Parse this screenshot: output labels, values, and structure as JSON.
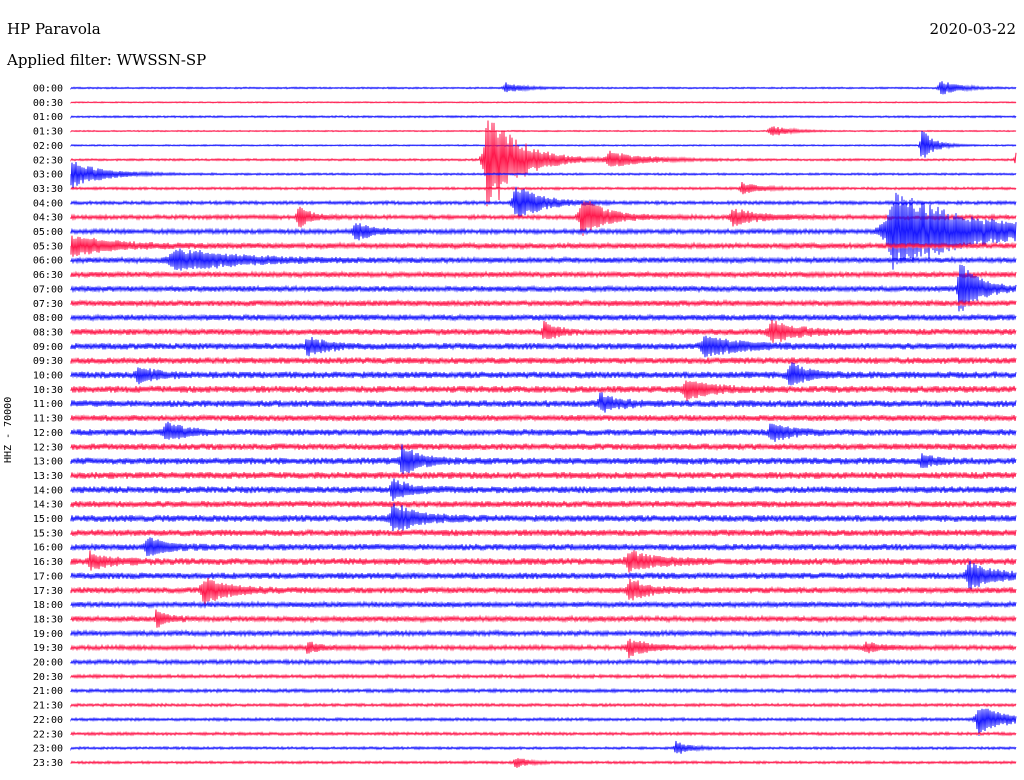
{
  "header": {
    "station": "HP Paravola",
    "date": "2020-03-22",
    "filter": "Applied filter: WWSSN-SP",
    "channel": "HHZ - 70000"
  },
  "colors": {
    "odd": "#1a1aff",
    "even": "#ff1a4d"
  },
  "chart_data": {
    "type": "line",
    "title": "HP Paravola",
    "ylabel": "HHZ - 70000",
    "grid": false,
    "rows": [
      "00:00",
      "00:30",
      "01:00",
      "01:30",
      "02:00",
      "02:30",
      "03:00",
      "03:30",
      "04:00",
      "04:30",
      "05:00",
      "05:30",
      "06:00",
      "06:30",
      "07:00",
      "07:30",
      "08:00",
      "08:30",
      "09:00",
      "09:30",
      "10:00",
      "10:30",
      "11:00",
      "11:30",
      "12:00",
      "12:30",
      "13:00",
      "13:30",
      "14:00",
      "14:30",
      "15:00",
      "15:30",
      "16:00",
      "16:30",
      "17:00",
      "17:30",
      "18:00",
      "18:30",
      "19:00",
      "19:30",
      "20:00",
      "20:30",
      "21:00",
      "21:30",
      "22:00",
      "22:30",
      "23:00",
      "23:30"
    ],
    "row_color_pattern": [
      "blue",
      "red"
    ],
    "noise_level": [
      0.8,
      0.6,
      0.9,
      0.6,
      0.7,
      1.0,
      1.0,
      1.2,
      1.6,
      2.0,
      2.2,
      2.6,
      2.6,
      2.6,
      2.8,
      2.8,
      3.0,
      3.0,
      3.2,
      3.2,
      3.4,
      3.4,
      3.4,
      3.0,
      3.2,
      3.2,
      3.4,
      3.4,
      3.4,
      3.2,
      3.4,
      3.2,
      3.2,
      3.4,
      3.2,
      3.0,
      2.6,
      2.6,
      2.4,
      2.2,
      2.0,
      1.6,
      1.6,
      1.4,
      1.4,
      1.4,
      1.2,
      1.2
    ],
    "events": [
      {
        "row": "00:00",
        "pos": 0.46,
        "amp": 5,
        "dur": 0.03
      },
      {
        "row": "00:00",
        "pos": 0.92,
        "amp": 8,
        "dur": 0.03
      },
      {
        "row": "01:30",
        "pos": 0.74,
        "amp": 6,
        "dur": 0.03
      },
      {
        "row": "02:00",
        "pos": 0.9,
        "amp": 18,
        "dur": 0.02
      },
      {
        "row": "02:30",
        "pos": 0.44,
        "amp": 60,
        "dur": 0.05
      },
      {
        "row": "02:30",
        "pos": 0.57,
        "amp": 8,
        "dur": 0.06
      },
      {
        "row": "02:30",
        "pos": 1.0,
        "amp": 10,
        "dur": 0.02
      },
      {
        "row": "03:00",
        "pos": 0.0,
        "amp": 14,
        "dur": 0.05
      },
      {
        "row": "03:30",
        "pos": 0.71,
        "amp": 6,
        "dur": 0.03
      },
      {
        "row": "04:00",
        "pos": 0.47,
        "amp": 20,
        "dur": 0.04
      },
      {
        "row": "04:30",
        "pos": 0.24,
        "amp": 12,
        "dur": 0.02
      },
      {
        "row": "04:30",
        "pos": 0.54,
        "amp": 22,
        "dur": 0.04
      },
      {
        "row": "04:30",
        "pos": 0.7,
        "amp": 8,
        "dur": 0.05
      },
      {
        "row": "05:00",
        "pos": 0.3,
        "amp": 10,
        "dur": 0.03
      },
      {
        "row": "05:00",
        "pos": 0.87,
        "amp": 42,
        "dur": 0.13
      },
      {
        "row": "05:30",
        "pos": 0.0,
        "amp": 10,
        "dur": 0.07
      },
      {
        "row": "06:00",
        "pos": 0.11,
        "amp": 12,
        "dur": 0.1
      },
      {
        "row": "07:00",
        "pos": 0.94,
        "amp": 30,
        "dur": 0.03
      },
      {
        "row": "08:30",
        "pos": 0.5,
        "amp": 10,
        "dur": 0.02
      },
      {
        "row": "08:30",
        "pos": 0.74,
        "amp": 12,
        "dur": 0.04
      },
      {
        "row": "09:00",
        "pos": 0.25,
        "amp": 10,
        "dur": 0.03
      },
      {
        "row": "09:00",
        "pos": 0.67,
        "amp": 12,
        "dur": 0.05
      },
      {
        "row": "10:00",
        "pos": 0.07,
        "amp": 8,
        "dur": 0.03
      },
      {
        "row": "10:00",
        "pos": 0.76,
        "amp": 12,
        "dur": 0.03
      },
      {
        "row": "10:30",
        "pos": 0.65,
        "amp": 10,
        "dur": 0.04
      },
      {
        "row": "11:00",
        "pos": 0.56,
        "amp": 9,
        "dur": 0.03
      },
      {
        "row": "12:00",
        "pos": 0.1,
        "amp": 10,
        "dur": 0.03
      },
      {
        "row": "12:00",
        "pos": 0.74,
        "amp": 10,
        "dur": 0.03
      },
      {
        "row": "13:00",
        "pos": 0.35,
        "amp": 16,
        "dur": 0.03
      },
      {
        "row": "13:00",
        "pos": 0.9,
        "amp": 6,
        "dur": 0.02
      },
      {
        "row": "14:00",
        "pos": 0.34,
        "amp": 10,
        "dur": 0.03
      },
      {
        "row": "15:00",
        "pos": 0.34,
        "amp": 16,
        "dur": 0.04
      },
      {
        "row": "16:00",
        "pos": 0.08,
        "amp": 10,
        "dur": 0.03
      },
      {
        "row": "16:30",
        "pos": 0.02,
        "amp": 8,
        "dur": 0.03
      },
      {
        "row": "16:30",
        "pos": 0.59,
        "amp": 10,
        "dur": 0.05
      },
      {
        "row": "17:00",
        "pos": 0.95,
        "amp": 14,
        "dur": 0.04
      },
      {
        "row": "17:30",
        "pos": 0.14,
        "amp": 14,
        "dur": 0.04
      },
      {
        "row": "17:30",
        "pos": 0.59,
        "amp": 12,
        "dur": 0.03
      },
      {
        "row": "18:30",
        "pos": 0.09,
        "amp": 8,
        "dur": 0.02
      },
      {
        "row": "19:30",
        "pos": 0.25,
        "amp": 6,
        "dur": 0.02
      },
      {
        "row": "19:30",
        "pos": 0.59,
        "amp": 10,
        "dur": 0.03
      },
      {
        "row": "19:30",
        "pos": 0.84,
        "amp": 5,
        "dur": 0.03
      },
      {
        "row": "22:00",
        "pos": 0.96,
        "amp": 16,
        "dur": 0.04
      },
      {
        "row": "23:00",
        "pos": 0.64,
        "amp": 8,
        "dur": 0.02
      },
      {
        "row": "23:30",
        "pos": 0.47,
        "amp": 6,
        "dur": 0.02
      }
    ]
  }
}
